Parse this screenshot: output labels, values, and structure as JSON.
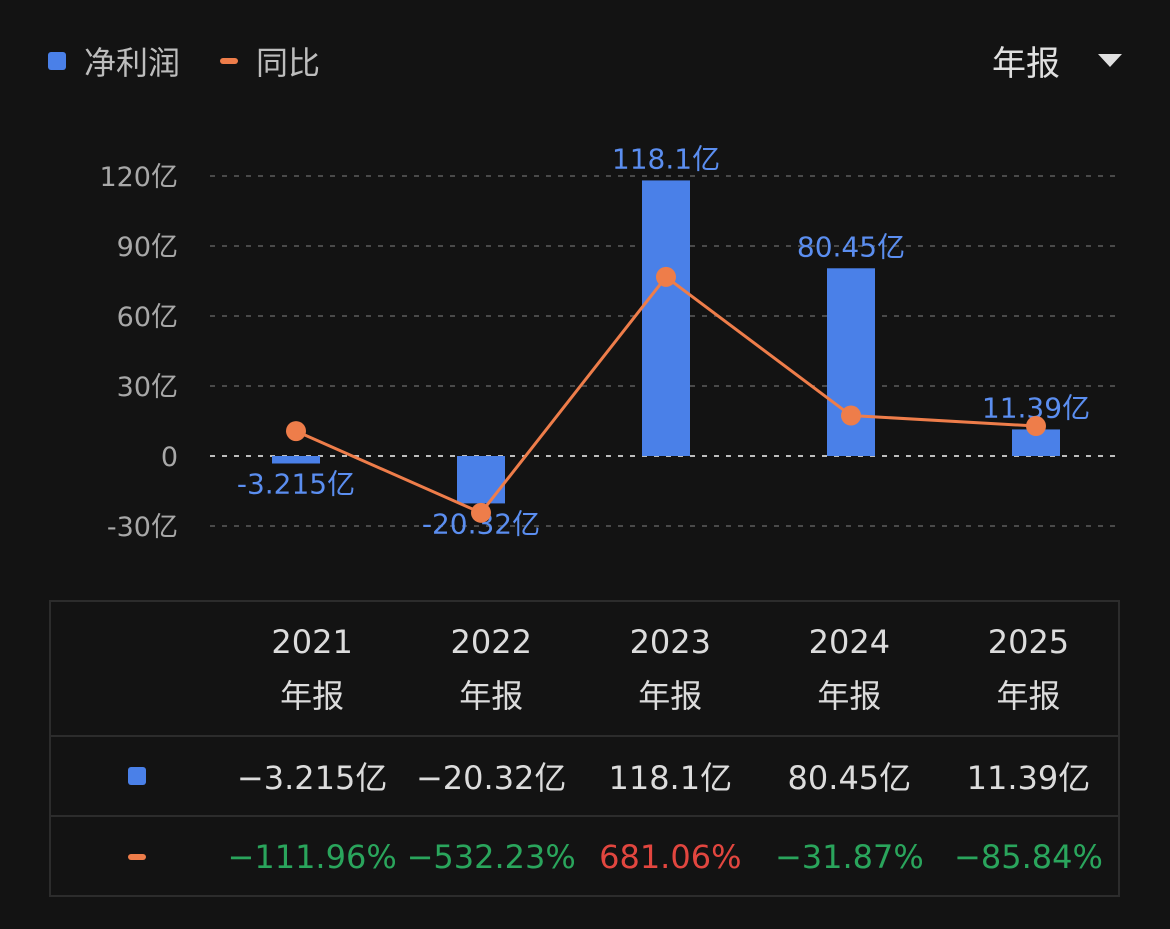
{
  "legend": [
    {
      "label": "净利润",
      "color": "#4a80e8",
      "icon": "square"
    },
    {
      "label": "同比",
      "color": "#ee7d4a",
      "icon": "dash"
    }
  ],
  "period_selector": {
    "value": "年报",
    "icon": "triangle-down-icon"
  },
  "chart_data": {
    "type": "bar+line",
    "categories": [
      "2021",
      "2022",
      "2023",
      "2024",
      "2025"
    ],
    "y_ticks": [
      "120亿",
      "90亿",
      "60亿",
      "30亿",
      "0",
      "-30亿"
    ],
    "ylim": [
      -30,
      120
    ],
    "grid": true,
    "series": [
      {
        "name": "净利润",
        "type": "bar",
        "unit": "亿",
        "color": "#4a80e8",
        "values": [
          -3.215,
          -20.32,
          118.1,
          80.45,
          11.39
        ],
        "labels": [
          "-3.215亿",
          "-20.32亿",
          "118.1亿",
          "80.45亿",
          "11.39亿"
        ]
      },
      {
        "name": "同比",
        "type": "line",
        "unit": "%",
        "color": "#ee7d4a",
        "values": [
          -111.96,
          -532.23,
          681.06,
          -31.87,
          -85.84
        ],
        "ylim": [
          -600,
          1200
        ]
      }
    ]
  },
  "table": {
    "columns": [
      {
        "year": "2021",
        "period": "年报"
      },
      {
        "year": "2022",
        "period": "年报"
      },
      {
        "year": "2023",
        "period": "年报"
      },
      {
        "year": "2024",
        "period": "年报"
      },
      {
        "year": "2025",
        "period": "年报"
      }
    ],
    "profit_row": [
      "−3.215亿",
      "−20.32亿",
      "118.1亿",
      "80.45亿",
      "11.39亿"
    ],
    "yoy_row": [
      {
        "text": "−111.96%",
        "sign": "neg"
      },
      {
        "text": "−532.23%",
        "sign": "neg"
      },
      {
        "text": "681.06%",
        "sign": "pos"
      },
      {
        "text": "−31.87%",
        "sign": "neg"
      },
      {
        "text": "−85.84%",
        "sign": "neg"
      }
    ],
    "colors": {
      "positive": "#e2463f",
      "negative": "#2aa55c"
    }
  }
}
